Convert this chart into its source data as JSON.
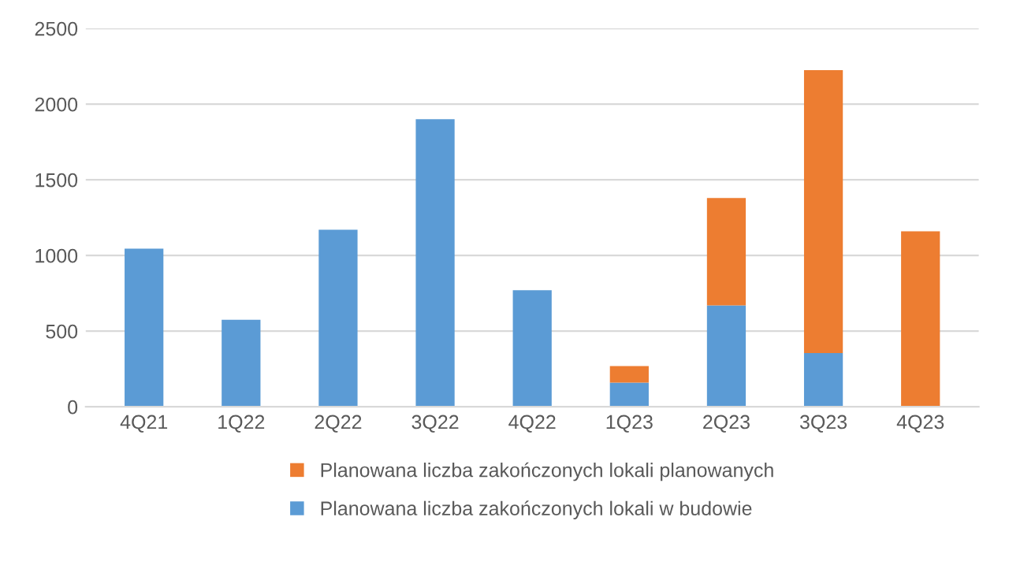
{
  "chart_data": {
    "type": "bar",
    "stacked": true,
    "categories": [
      "4Q21",
      "1Q22",
      "2Q22",
      "3Q22",
      "4Q22",
      "1Q23",
      "2Q23",
      "3Q23",
      "4Q23"
    ],
    "series": [
      {
        "name": "Planowana liczba zakończonych lokali w budowie",
        "color": "#5b9bd5",
        "values": [
          1045,
          575,
          1170,
          1900,
          770,
          160,
          670,
          355,
          0
        ]
      },
      {
        "name": "Planowana liczba zakończonych lokali planowanych",
        "color": "#ed7d31",
        "values": [
          0,
          0,
          0,
          0,
          0,
          110,
          710,
          1870,
          1160
        ]
      }
    ],
    "ylim": [
      0,
      2500
    ],
    "yticks": [
      0,
      500,
      1000,
      1500,
      2000,
      2500
    ],
    "grid": "y",
    "legend": "bottom"
  }
}
